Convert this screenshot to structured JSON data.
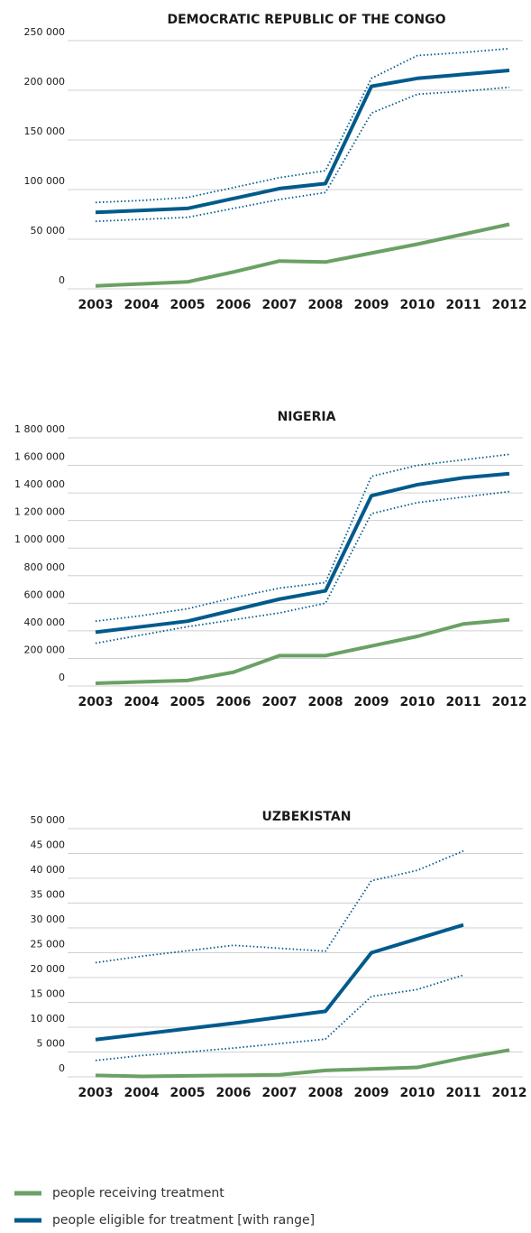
{
  "chart_data": [
    {
      "type": "line",
      "title": "DEMOCRATIC REPUBLIC OF THE CONGO",
      "categories": [
        "2003",
        "2004",
        "2005",
        "2006",
        "2007",
        "2008",
        "2009",
        "2010",
        "2011",
        "2012"
      ],
      "ylim": [
        0,
        250000
      ],
      "yticks": [
        {
          "value": 0,
          "label": "0"
        },
        {
          "value": 50000,
          "label": "50 000"
        },
        {
          "value": 100000,
          "label": "100 000"
        },
        {
          "value": 150000,
          "label": "150 000"
        },
        {
          "value": 200000,
          "label": "200 000"
        },
        {
          "value": 250000,
          "label": "250 000"
        }
      ],
      "grid": true,
      "series": [
        {
          "color": "#6aa165",
          "values": [
            3000,
            5000,
            7000,
            17000,
            28000,
            27000,
            36000,
            45000,
            55000,
            65000
          ]
        },
        {
          "color": "#005a8c",
          "values": [
            77000,
            79000,
            81000,
            91000,
            101000,
            106000,
            204000,
            212000,
            216000,
            220000
          ],
          "range_low": [
            68000,
            70000,
            72000,
            81000,
            90000,
            97000,
            177000,
            196000,
            199000,
            203000
          ],
          "range_high": [
            87000,
            89000,
            92000,
            102000,
            112000,
            119000,
            212000,
            235000,
            238000,
            242000
          ]
        }
      ]
    },
    {
      "type": "line",
      "title": "NIGERIA",
      "categories": [
        "2003",
        "2004",
        "2005",
        "2006",
        "2007",
        "2008",
        "2009",
        "2010",
        "2011",
        "2012"
      ],
      "ylim": [
        0,
        1800000
      ],
      "yticks": [
        {
          "value": 0,
          "label": "0"
        },
        {
          "value": 200000,
          "label": "200 000"
        },
        {
          "value": 400000,
          "label": "400 000"
        },
        {
          "value": 600000,
          "label": "600 000"
        },
        {
          "value": 800000,
          "label": "800 000"
        },
        {
          "value": 1000000,
          "label": "1 000 000"
        },
        {
          "value": 1200000,
          "label": "1 200 000"
        },
        {
          "value": 1400000,
          "label": "1 400 000"
        },
        {
          "value": 1600000,
          "label": "1 600 000"
        },
        {
          "value": 1800000,
          "label": "1 800 000"
        }
      ],
      "grid": true,
      "series": [
        {
          "color": "#6aa165",
          "values": [
            20000,
            30000,
            40000,
            100000,
            220000,
            220000,
            290000,
            360000,
            450000,
            480000
          ]
        },
        {
          "color": "#005a8c",
          "values": [
            390000,
            430000,
            470000,
            550000,
            630000,
            690000,
            1380000,
            1460000,
            1510000,
            1540000
          ],
          "range_low": [
            310000,
            370000,
            430000,
            480000,
            530000,
            600000,
            1250000,
            1330000,
            1370000,
            1410000
          ],
          "range_high": [
            470000,
            510000,
            560000,
            640000,
            710000,
            750000,
            1520000,
            1600000,
            1640000,
            1680000
          ]
        }
      ]
    },
    {
      "type": "line",
      "title": "UZBEKISTAN",
      "categories": [
        "2003",
        "2004",
        "2005",
        "2006",
        "2007",
        "2008",
        "2009",
        "2010",
        "2011",
        "2012"
      ],
      "ylim": [
        0,
        50000
      ],
      "yticks": [
        {
          "value": 0,
          "label": "0"
        },
        {
          "value": 5000,
          "label": "5 000"
        },
        {
          "value": 10000,
          "label": "10 000"
        },
        {
          "value": 15000,
          "label": "15 000"
        },
        {
          "value": 20000,
          "label": "20 000"
        },
        {
          "value": 25000,
          "label": "25 000"
        },
        {
          "value": 30000,
          "label": "30 000"
        },
        {
          "value": 35000,
          "label": "35 000"
        },
        {
          "value": 40000,
          "label": "40 000"
        },
        {
          "value": 45000,
          "label": "45 000"
        },
        {
          "value": 50000,
          "label": "50 000"
        }
      ],
      "grid": true,
      "series": [
        {
          "color": "#6aa165",
          "values": [
            300,
            100,
            200,
            300,
            400,
            1300,
            1600,
            1900,
            3800,
            5400
          ]
        },
        {
          "color": "#005a8c",
          "values": [
            7500,
            8600,
            9700,
            10800,
            12000,
            13200,
            25000,
            27800,
            30600,
            null
          ],
          "range_low": [
            3300,
            4300,
            5000,
            5800,
            6700,
            7600,
            16200,
            17600,
            20500,
            null
          ],
          "range_high": [
            23000,
            24300,
            25400,
            26500,
            25900,
            25300,
            39500,
            41600,
            45500,
            null
          ]
        }
      ]
    }
  ],
  "legend": [
    {
      "name": "people receiving treatment",
      "color": "#6aa165"
    },
    {
      "name": "people eligible for treatment [with range]",
      "color": "#005a8c"
    }
  ]
}
